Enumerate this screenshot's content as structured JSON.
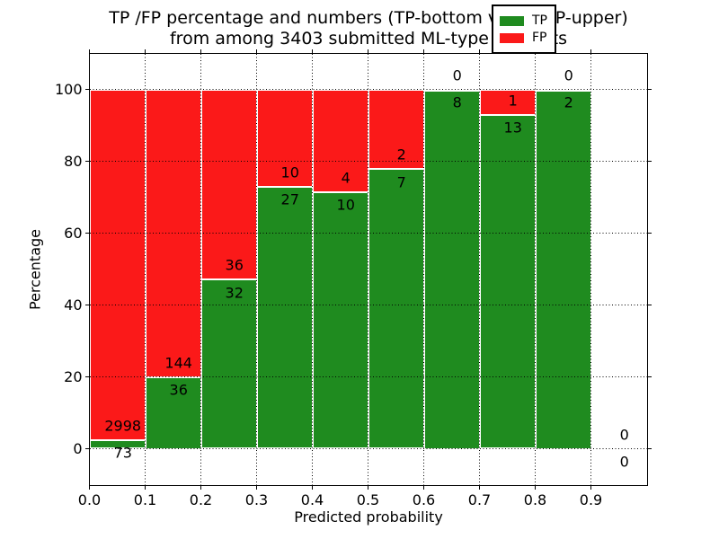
{
  "chart_data": {
    "type": "bar",
    "stacked": true,
    "title_line1": "TP /FP percentage and numbers (TP-bottom value, FP-upper)",
    "title_line2": "from among 3403 submitted ML-type contacts",
    "xlabel": "Predicted probability",
    "ylabel": "Percentage",
    "xlim": [
      0.0,
      1.0
    ],
    "ylim": [
      -10,
      110
    ],
    "grid": "dotted-black-on-top",
    "legend_position": "upper right",
    "colors": {
      "tp": "#1f8b1f",
      "fp": "#fb1919",
      "bar_edge": "#ffffff",
      "text": "#000000"
    },
    "legend": [
      {
        "label": "TP",
        "color": "#1f8b1f"
      },
      {
        "label": "FP",
        "color": "#fb1919"
      }
    ],
    "xticks": [
      {
        "label": "0.0",
        "value": 0.0
      },
      {
        "label": "0.1",
        "value": 0.1
      },
      {
        "label": "0.2",
        "value": 0.2
      },
      {
        "label": "0.3",
        "value": 0.3
      },
      {
        "label": "0.4",
        "value": 0.4
      },
      {
        "label": "0.5",
        "value": 0.5
      },
      {
        "label": "0.6",
        "value": 0.6
      },
      {
        "label": "0.7",
        "value": 0.7
      },
      {
        "label": "0.8",
        "value": 0.8
      },
      {
        "label": "0.9",
        "value": 0.9
      }
    ],
    "yticks": [
      {
        "label": "0",
        "value": 0
      },
      {
        "label": "20",
        "value": 20
      },
      {
        "label": "40",
        "value": 40
      },
      {
        "label": "60",
        "value": 60
      },
      {
        "label": "80",
        "value": 80
      },
      {
        "label": "100",
        "value": 100
      }
    ],
    "bins": [
      {
        "x_start": 0.0,
        "x_end": 0.1,
        "tp": 73,
        "fp": 2998,
        "tp_pct": 2.38,
        "fp_pct": 97.62
      },
      {
        "x_start": 0.1,
        "x_end": 0.2,
        "tp": 36,
        "fp": 144,
        "tp_pct": 20.0,
        "fp_pct": 80.0
      },
      {
        "x_start": 0.2,
        "x_end": 0.3,
        "tp": 32,
        "fp": 36,
        "tp_pct": 47.06,
        "fp_pct": 52.94
      },
      {
        "x_start": 0.3,
        "x_end": 0.4,
        "tp": 27,
        "fp": 10,
        "tp_pct": 72.97,
        "fp_pct": 27.03
      },
      {
        "x_start": 0.4,
        "x_end": 0.5,
        "tp": 10,
        "fp": 4,
        "tp_pct": 71.43,
        "fp_pct": 28.57
      },
      {
        "x_start": 0.5,
        "x_end": 0.6,
        "tp": 7,
        "fp": 2,
        "tp_pct": 77.78,
        "fp_pct": 22.22
      },
      {
        "x_start": 0.6,
        "x_end": 0.7,
        "tp": 8,
        "fp": 0,
        "tp_pct": 100,
        "fp_pct": 0
      },
      {
        "x_start": 0.7,
        "x_end": 0.8,
        "tp": 13,
        "fp": 1,
        "tp_pct": 92.86,
        "fp_pct": 7.14
      },
      {
        "x_start": 0.8,
        "x_end": 0.9,
        "tp": 2,
        "fp": 0,
        "tp_pct": 100,
        "fp_pct": 0
      },
      {
        "x_start": 0.9,
        "x_end": 1.0,
        "tp": 0,
        "fp": 0,
        "tp_pct": 0,
        "fp_pct": 0
      }
    ]
  }
}
